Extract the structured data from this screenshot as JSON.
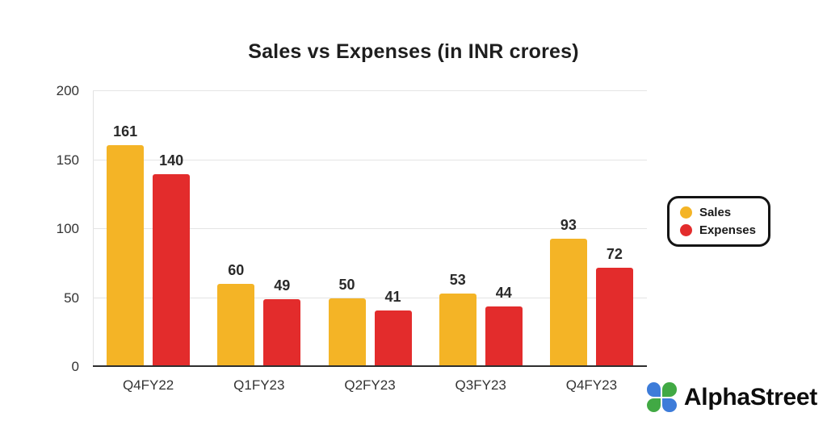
{
  "chart_data": {
    "type": "bar",
    "title": "Sales vs Expenses (in INR crores)",
    "categories": [
      "Q4FY22",
      "Q1FY23",
      "Q2FY23",
      "Q3FY23",
      "Q4FY23"
    ],
    "series": [
      {
        "name": "Sales",
        "color": "#F4B426",
        "values": [
          161,
          60,
          50,
          53,
          93
        ]
      },
      {
        "name": "Expenses",
        "color": "#E32C2C",
        "values": [
          140,
          49,
          41,
          44,
          72
        ]
      }
    ],
    "ylim": [
      0,
      200
    ],
    "yticks": [
      0,
      50,
      100,
      150,
      200
    ],
    "grid": true,
    "legend_position": "right"
  },
  "legend": {
    "items": [
      {
        "label": "Sales",
        "color": "#F4B426"
      },
      {
        "label": "Expenses",
        "color": "#E32C2C"
      }
    ]
  },
  "brand": {
    "name": "AlphaStreet",
    "icon_colors": {
      "blue": "#3D7CD9",
      "green": "#41A944"
    }
  }
}
